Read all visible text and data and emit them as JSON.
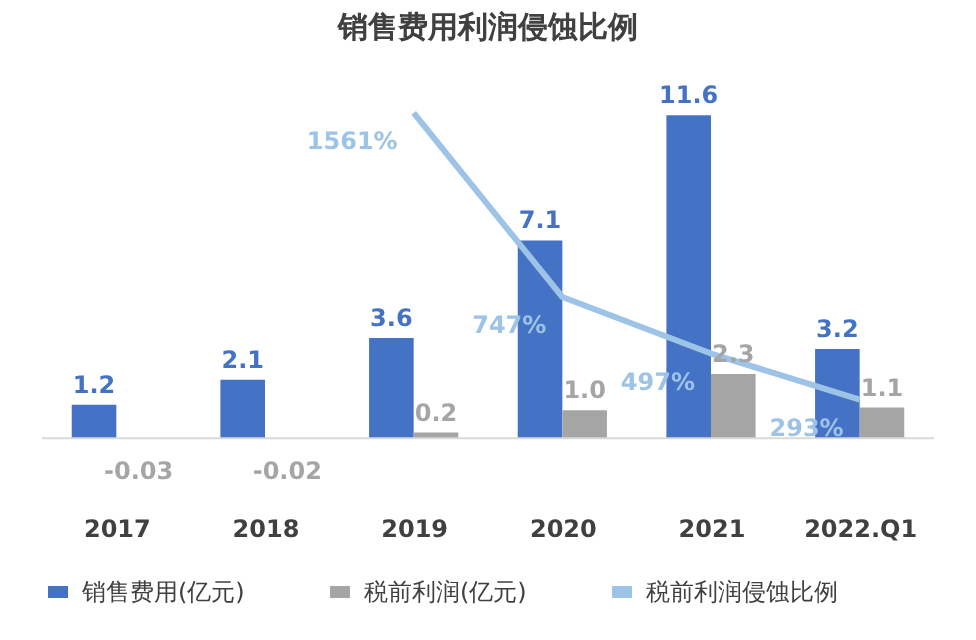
{
  "chart_data": {
    "type": "bar",
    "title": "销售费用利润侵蚀比例",
    "categories": [
      "2017",
      "2018",
      "2019",
      "2020",
      "2021",
      "2022.Q1"
    ],
    "series": [
      {
        "name": "销售费用(亿元)",
        "color": "#4472c4",
        "values": [
          1.2,
          2.1,
          3.6,
          7.1,
          11.6,
          3.2
        ],
        "value_labels": [
          "1.2",
          "2.1",
          "3.6",
          "7.1",
          "11.6",
          "3.2"
        ]
      },
      {
        "name": "税前利润(亿元)",
        "color": "#a5a5a5",
        "values": [
          -0.03,
          -0.02,
          0.2,
          1.0,
          2.3,
          1.1
        ],
        "value_labels": [
          "-0.03",
          "-0.02",
          "0.2",
          "1.0",
          "2.3",
          "1.1"
        ]
      },
      {
        "name": "税前利润侵蚀比例",
        "type": "line",
        "axis": "y2",
        "color": "#9dc3e6",
        "values": [
          null,
          null,
          1561,
          747,
          497,
          293
        ],
        "value_labels": [
          null,
          null,
          "1561%",
          "747%",
          "497%",
          "293%"
        ]
      }
    ],
    "ref_lines": [
      {
        "axis": "y",
        "value": 0,
        "color": "#d9d9d9"
      }
    ],
    "legend": "bottom"
  }
}
